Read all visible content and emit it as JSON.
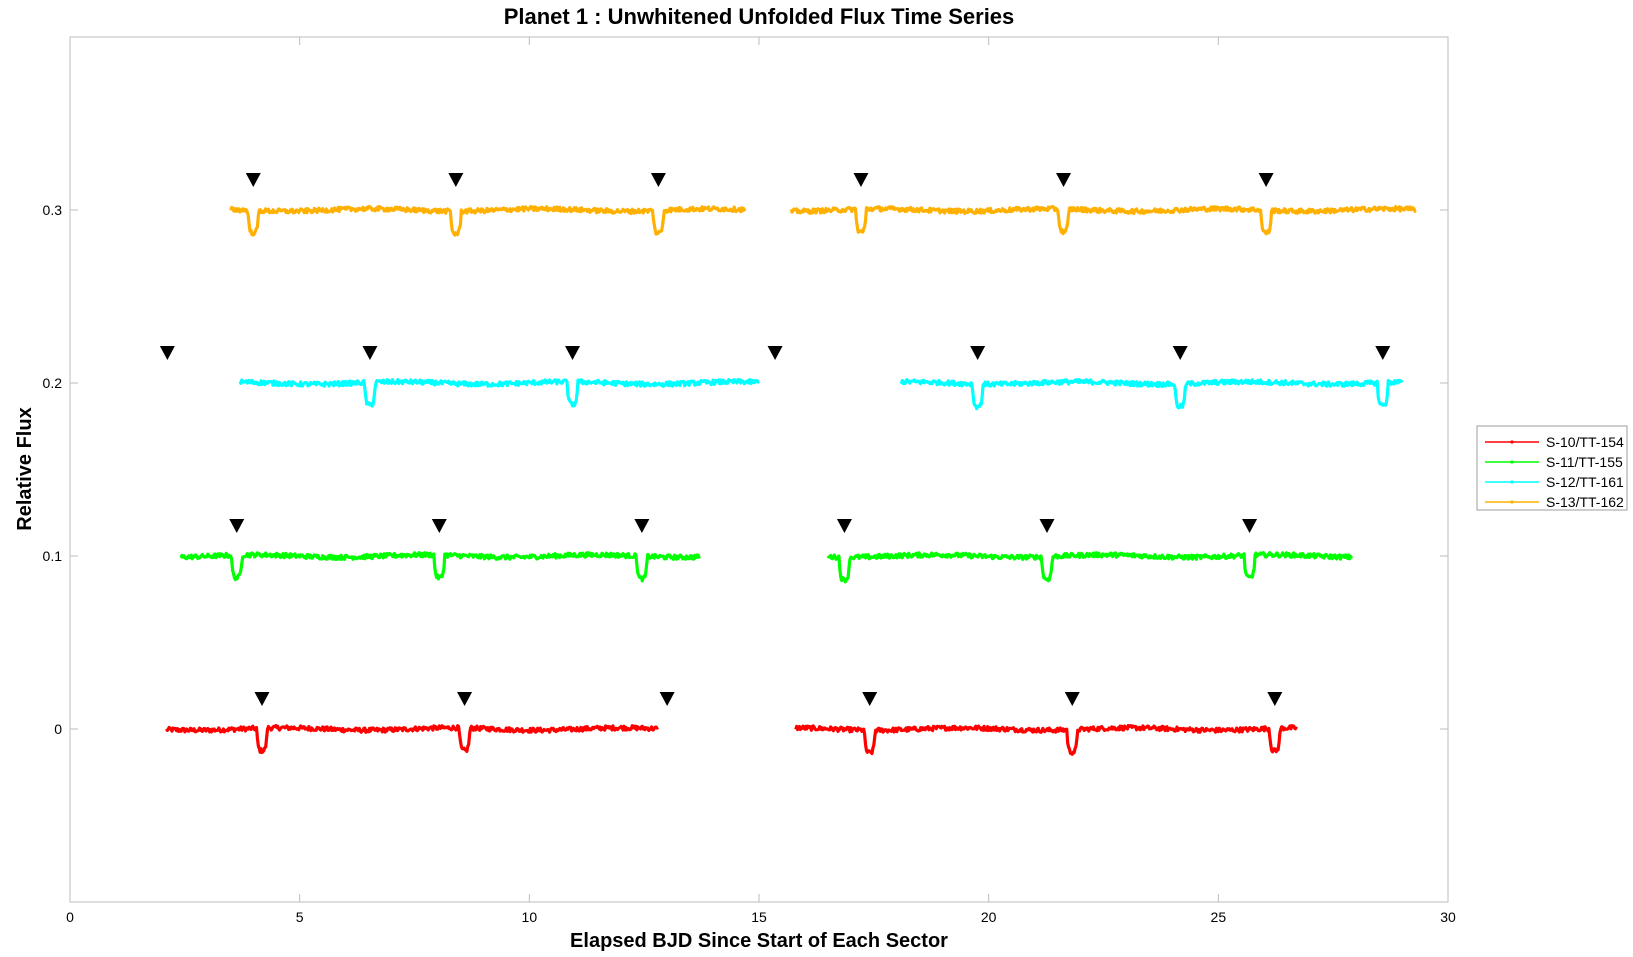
{
  "chart_data": {
    "type": "line",
    "title": "Planet 1 : Unwhitened Unfolded Flux Time Series",
    "xlabel": "Elapsed BJD Since Start of Each Sector",
    "ylabel": "Relative Flux",
    "xlim": [
      0,
      30
    ],
    "ylim": [
      -0.1,
      0.4
    ],
    "xticks": [
      0,
      5,
      10,
      15,
      20,
      25,
      30
    ],
    "yticks": [
      0,
      0.1,
      0.2,
      0.3
    ],
    "xtick_labels": [
      "0",
      "5",
      "10",
      "15",
      "20",
      "25",
      "30"
    ],
    "ytick_labels": [
      "0",
      "0.1",
      "0.2",
      "0.3"
    ],
    "grid": false,
    "legend_position": "right",
    "period": 4.4095,
    "transit_depth": 0.013,
    "transit_halfwidth": 0.12,
    "marker_glyph": "▼",
    "series": [
      {
        "name": "S-10/TT-154",
        "color": "#ff0000",
        "offset": 0,
        "segments": [
          [
            2.1,
            12.8
          ],
          [
            15.8,
            26.7
          ]
        ],
        "transit_times": [
          4.18,
          8.59,
          17.41,
          21.82,
          26.23
        ],
        "marker_times": [
          4.18,
          8.59,
          13.0,
          17.41,
          21.82,
          26.23
        ]
      },
      {
        "name": "S-11/TT-155",
        "color": "#00ff00",
        "offset": 0.1,
        "segments": [
          [
            2.4,
            13.7
          ],
          [
            16.5,
            27.9
          ]
        ],
        "transit_times": [
          3.63,
          8.04,
          12.45,
          16.86,
          21.27,
          25.68
        ],
        "marker_times": [
          3.63,
          8.04,
          12.45,
          16.86,
          21.27,
          25.68
        ]
      },
      {
        "name": "S-12/TT-161",
        "color": "#00ffff",
        "offset": 0.2,
        "segments": [
          [
            3.7,
            15.0
          ],
          [
            18.1,
            29.0
          ]
        ],
        "transit_times": [
          6.53,
          10.94,
          19.76,
          24.17,
          28.58
        ],
        "marker_times": [
          2.12,
          6.53,
          10.94,
          15.35,
          19.76,
          24.17,
          28.58
        ]
      },
      {
        "name": "S-13/TT-162",
        "color": "#ffb000",
        "offset": 0.3,
        "segments": [
          [
            3.5,
            14.7
          ],
          [
            15.7,
            29.3
          ]
        ],
        "transit_times": [
          3.99,
          8.4,
          12.81,
          17.22,
          21.63,
          26.04
        ],
        "marker_times": [
          3.99,
          8.4,
          12.81,
          17.22,
          21.63,
          26.04
        ]
      }
    ]
  }
}
